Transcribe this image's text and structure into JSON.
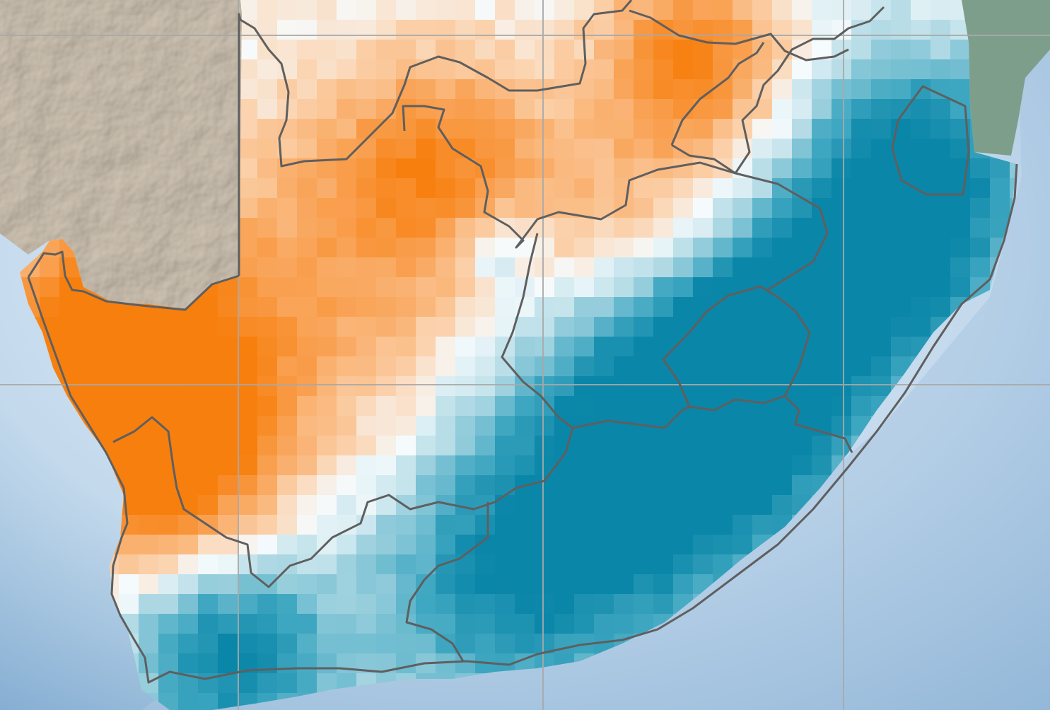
{
  "map": {
    "region": "Southern Africa",
    "layers": [
      "shaded-relief-basemap",
      "anomaly-grid",
      "boundaries",
      "graticule"
    ],
    "colors": {
      "ocean_light": "#d7e8f4",
      "ocean_deep": "#6f9fc9",
      "land_relief": "#cbbfae",
      "land_relief_shadow": "#a99f92",
      "land_green": "#7e9e8c",
      "orange_strong": "#f77f0e",
      "orange_mid": "#f9a55a",
      "orange_light": "#fbd2ad",
      "neutral": "#f6fbfd",
      "teal_light": "#a9d6e2",
      "teal_mid": "#3fa7c1",
      "teal_strong": "#0a86a8",
      "boundary": "#5f5f5f",
      "graticule": "#a8a8a8"
    }
  }
}
